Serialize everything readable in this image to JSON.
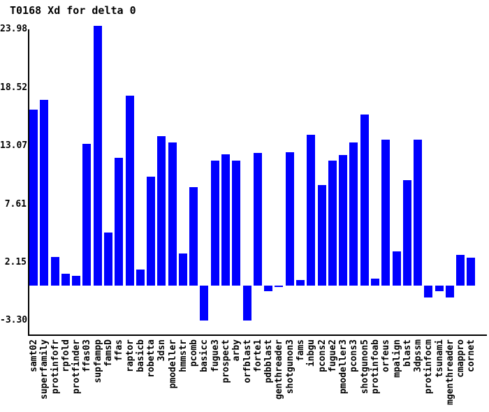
{
  "chart_data": {
    "type": "bar",
    "title": "T0168 Xd for delta 0",
    "xlabel": "",
    "ylabel": "",
    "grid": false,
    "legend": null,
    "bar_color": "#0000ff",
    "axis_color": "#000000",
    "background_color": "#ffffff",
    "ylim": [
      -3.3,
      23.98
    ],
    "y_ticks": [
      23.98,
      18.52,
      13.07,
      7.61,
      2.15,
      -3.3
    ],
    "y_tick_labels": [
      "23.98",
      "18.52",
      "13.07",
      "7.61",
      "2.15",
      "-3.30"
    ],
    "categories": [
      "samt02",
      "superfamily",
      "protinfofr",
      "rpfold",
      "protfinder",
      "ffas03",
      "supfampp",
      "famsD",
      "ffas",
      "raptor",
      "basicb",
      "robetta",
      "3dsn",
      "pmodeller",
      "hmmstr",
      "pcomb",
      "basicc",
      "fugue3",
      "prospect",
      "arby",
      "orfblast",
      "forte1",
      "pdbblast",
      "genthreader",
      "shotgunon3",
      "fams",
      "inbgu",
      "pcons2",
      "fugue2",
      "pmodeller3",
      "pcons3",
      "shotgunon5",
      "protinfoab",
      "orfeus",
      "mpalign",
      "blast",
      "3dpssm",
      "protinfocm",
      "tsunami",
      "mgenthreader",
      "cmappro",
      "cornet"
    ],
    "values": [
      16.5,
      17.4,
      2.7,
      1.1,
      0.9,
      13.3,
      24.3,
      5.0,
      12.0,
      17.8,
      1.5,
      10.2,
      14.0,
      13.4,
      3.0,
      9.2,
      -3.3,
      11.7,
      12.3,
      11.7,
      -3.3,
      12.4,
      -0.5,
      -0.15,
      12.5,
      0.5,
      14.1,
      9.4,
      11.7,
      12.2,
      13.4,
      16.0,
      0.65,
      13.7,
      3.2,
      9.9,
      13.7,
      -1.1,
      -0.55,
      -1.1,
      2.9,
      2.6
    ]
  }
}
